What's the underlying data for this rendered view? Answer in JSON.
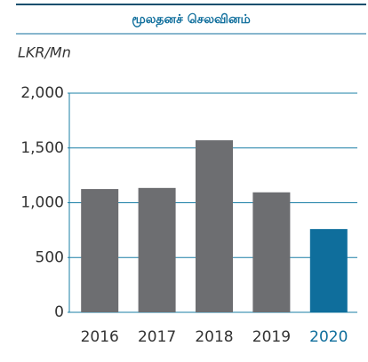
{
  "chart_data": {
    "type": "bar",
    "title": "மூலதனச் செலவினம்",
    "y_label": "LKR/Mn",
    "categories": [
      "2016",
      "2017",
      "2018",
      "2019",
      "2020"
    ],
    "values": [
      1125,
      1135,
      1570,
      1095,
      760
    ],
    "colors": [
      "#6d6e71",
      "#6d6e71",
      "#6d6e71",
      "#6d6e71",
      "#0f6e9c"
    ],
    "ylim": [
      0,
      2000
    ],
    "yticks": [
      0,
      {
        "value": 500,
        "label": "500"
      },
      {
        "value": 1000,
        "label": "1,000"
      },
      {
        "value": 1500,
        "label": "1,500"
      },
      {
        "value": 2000,
        "label": "2,000"
      }
    ],
    "grid": true
  }
}
